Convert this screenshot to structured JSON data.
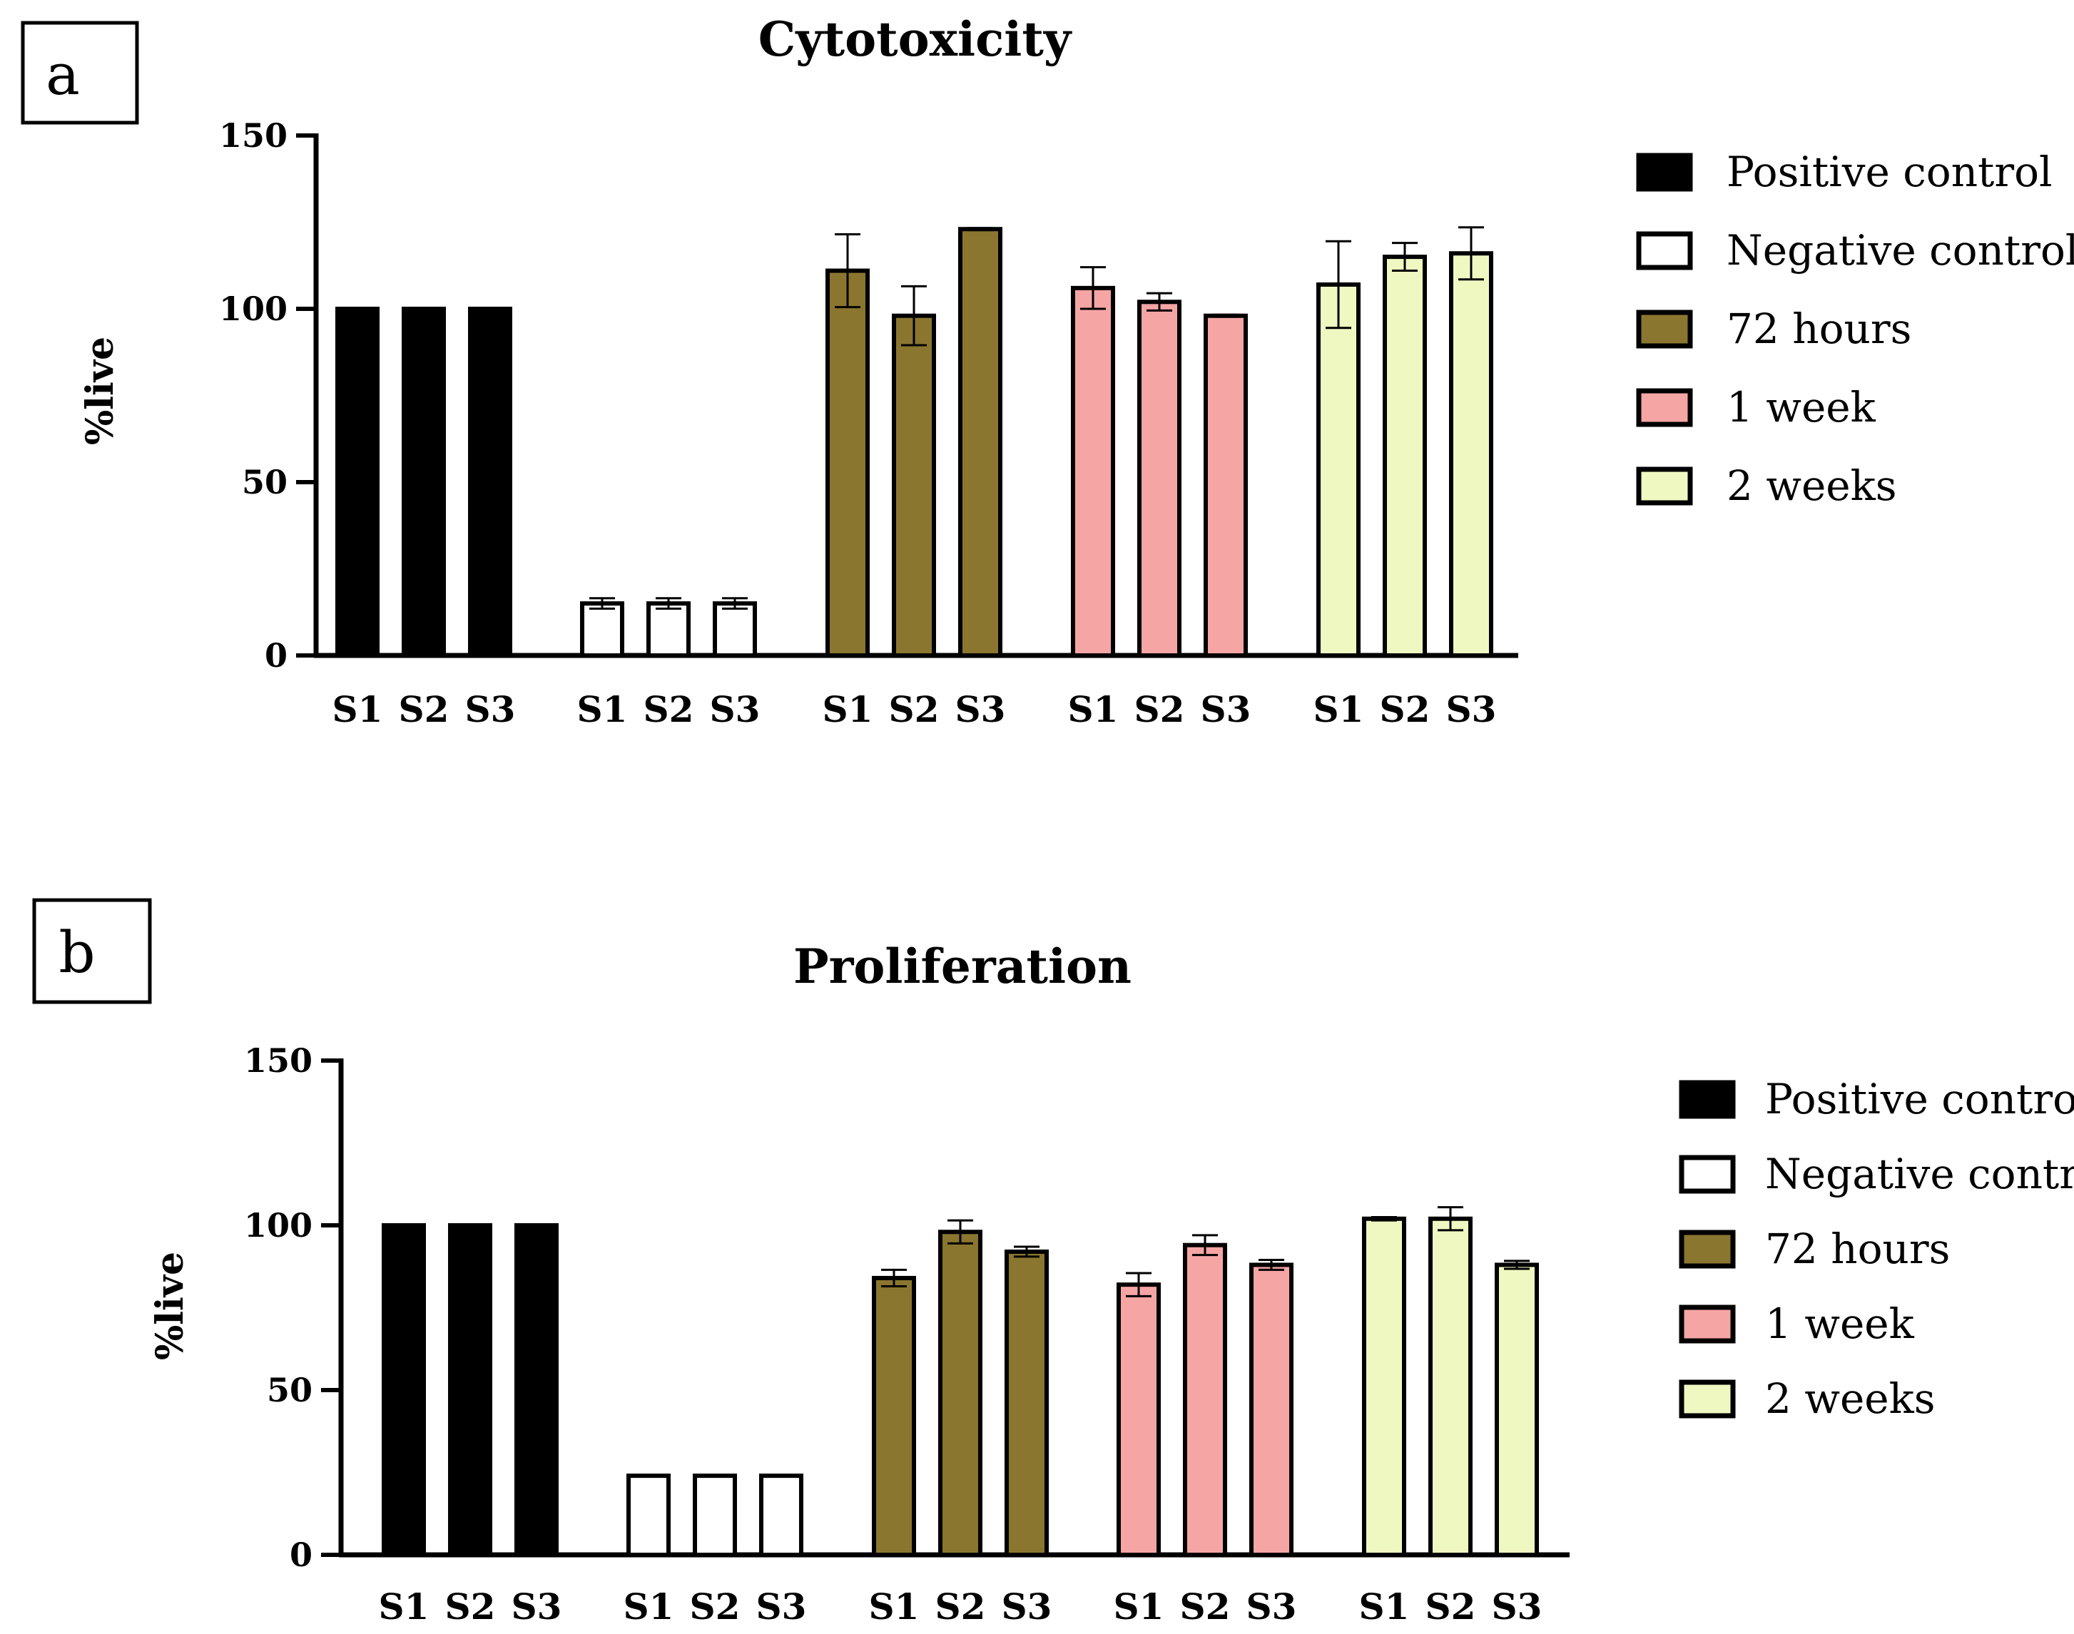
{
  "colors": {
    "positive_control": "#000000",
    "negative_control": "#ffffff",
    "h72": "#8b7630",
    "w1": "#f6a5a5",
    "w2": "#f0f8c2",
    "stroke": "#000000"
  },
  "chart_data": [
    {
      "type": "bar",
      "panel_label": "a",
      "title": "Cytotoxicity",
      "ylabel": "%live",
      "xlabel": "",
      "ylim": [
        0,
        150
      ],
      "yticks": [
        "0",
        "50",
        "100",
        "150"
      ],
      "ytick_values": [
        0,
        50,
        100,
        150
      ],
      "categories": [
        "S1",
        "S2",
        "S3"
      ],
      "legend_position": "right",
      "series": [
        {
          "name": "Positive control",
          "color_key": "positive_control",
          "values": [
            100,
            100,
            100
          ],
          "errors": [
            0,
            0,
            0
          ]
        },
        {
          "name": "Negative control",
          "color_key": "negative_control",
          "values": [
            15,
            15,
            15
          ],
          "errors": [
            1.5,
            1.5,
            1.5
          ]
        },
        {
          "name": "72 hours",
          "color_key": "h72",
          "values": [
            111,
            98,
            123
          ],
          "errors": [
            10.5,
            8.5,
            0.3
          ]
        },
        {
          "name": "1 week",
          "color_key": "w1",
          "values": [
            106,
            102,
            98
          ],
          "errors": [
            6,
            2.5,
            0.3
          ]
        },
        {
          "name": "2 weeks",
          "color_key": "w2",
          "values": [
            107,
            115,
            116
          ],
          "errors": [
            12.5,
            4,
            7.5
          ]
        }
      ]
    },
    {
      "type": "bar",
      "panel_label": "b",
      "title": "Proliferation",
      "ylabel": "%live",
      "xlabel": "",
      "ylim": [
        0,
        150
      ],
      "yticks": [
        "0",
        "50",
        "100",
        "150"
      ],
      "ytick_values": [
        0,
        50,
        100,
        150
      ],
      "categories": [
        "S1",
        "S2",
        "S3"
      ],
      "legend_position": "right",
      "series": [
        {
          "name": "Positive control",
          "color_key": "positive_control",
          "values": [
            100,
            100,
            100
          ],
          "errors": [
            0,
            0,
            0
          ]
        },
        {
          "name": "Negative control",
          "color_key": "negative_control",
          "values": [
            24,
            24,
            24
          ],
          "errors": [
            0,
            0,
            0
          ]
        },
        {
          "name": "72 hours",
          "color_key": "h72",
          "values": [
            84,
            98,
            92
          ],
          "errors": [
            2.5,
            3.5,
            1.5
          ]
        },
        {
          "name": "1 week",
          "color_key": "w1",
          "values": [
            82,
            94,
            88
          ],
          "errors": [
            3.5,
            3,
            1.5
          ]
        },
        {
          "name": "2 weeks",
          "color_key": "w2",
          "values": [
            102,
            102,
            88
          ],
          "errors": [
            0.5,
            3.5,
            1.2
          ]
        }
      ]
    }
  ]
}
